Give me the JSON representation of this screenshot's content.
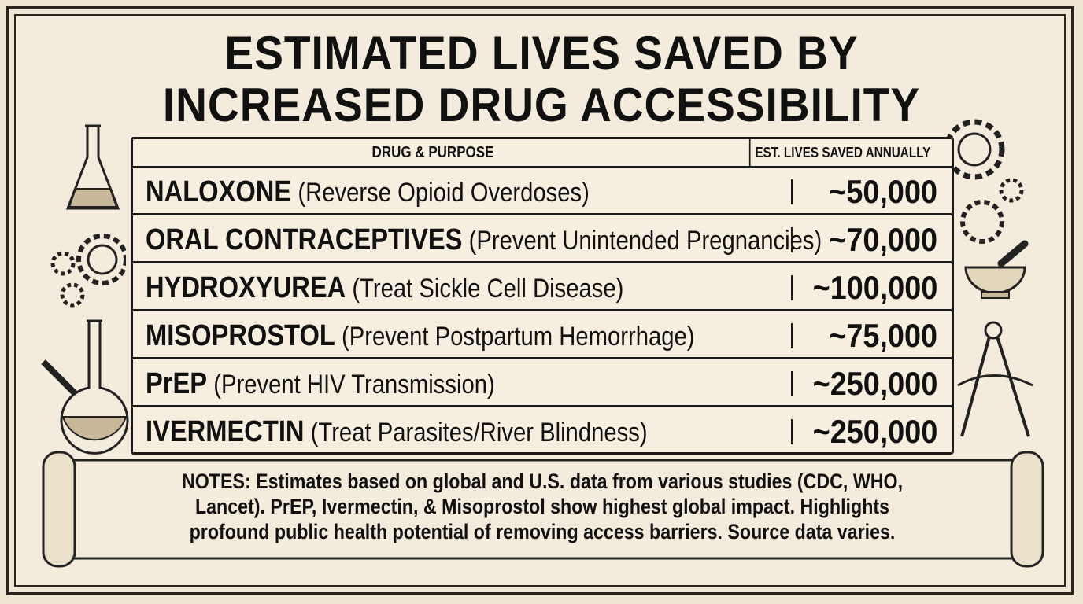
{
  "title": {
    "line1": "ESTIMATED LIVES SAVED BY",
    "line2": "INCREASED DRUG ACCESSIBILITY"
  },
  "table": {
    "headers": {
      "drug": "DRUG & PURPOSE",
      "lives": "EST. LIVES SAVED ANNUALLY"
    },
    "rows": [
      {
        "drug": "NALOXONE",
        "purpose": "(Reverse Opioid Overdoses)",
        "lives": "~50,000"
      },
      {
        "drug": "ORAL CONTRACEPTIVES",
        "purpose": "(Prevent Unintended Pregnancies)",
        "lives": "~70,000"
      },
      {
        "drug": "HYDROXYUREA",
        "purpose": "(Treat Sickle Cell Disease)",
        "lives": "~100,000"
      },
      {
        "drug": "MISOPROSTOL",
        "purpose": "(Prevent Postpartum Hemorrhage)",
        "lives": "~75,000"
      },
      {
        "drug": "PrEP",
        "purpose": "(Prevent HIV Transmission)",
        "lives": "~250,000"
      },
      {
        "drug": "IVERMECTIN",
        "purpose": "(Treat Parasites/River Blindness)",
        "lives": "~250,000"
      }
    ]
  },
  "notes": "NOTES: Estimates based on global and U.S. data from various studies (CDC, WHO, Lancet). PrEP, Ivermectin, & Misoprostol show highest global impact. Highlights profound public health potential of removing access barriers. Source data varies.",
  "icons": [
    "flask-icon",
    "gears-icon",
    "round-flask-icon",
    "mortar-pestle-icon",
    "compass-icon",
    "scroll-icon"
  ],
  "colors": {
    "paper": "#f3ecdc",
    "ink": "#1a1a1a"
  }
}
